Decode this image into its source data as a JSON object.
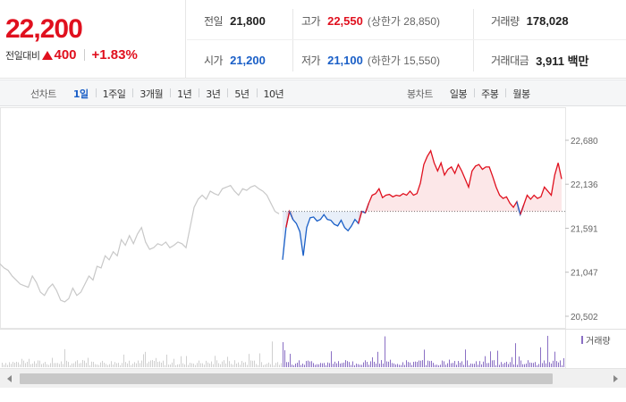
{
  "quote": {
    "current_price": "22,200",
    "change_label": "전일대비",
    "change_amount": "400",
    "change_percent": "+1.83%",
    "stats": {
      "prev_close": {
        "label": "전일",
        "value": "21,800"
      },
      "open": {
        "label": "시가",
        "value": "21,200"
      },
      "high": {
        "label": "고가",
        "value": "22,550",
        "sub": "(상한가 28,850)"
      },
      "low": {
        "label": "저가",
        "value": "21,100",
        "sub": "(하한가 15,550)"
      },
      "volume": {
        "label": "거래량",
        "value": "178,028"
      },
      "trade_value": {
        "label": "거래대금",
        "value": "3,911 백만"
      }
    }
  },
  "tabs": {
    "line_chart_label": "선차트",
    "line_items": [
      "1일",
      "1주일",
      "3개월",
      "1년",
      "3년",
      "5년",
      "10년"
    ],
    "line_active": "1일",
    "candle_chart_label": "봉차트",
    "candle_items": [
      "일봉",
      "주봉",
      "월봉"
    ]
  },
  "chart": {
    "y_ticks": [
      "22,680",
      "22,136",
      "21,591",
      "21,047",
      "20,502"
    ],
    "volume_legend": "거래량"
  },
  "colors": {
    "up": "#e0101e",
    "down": "#1a5fc7",
    "previous_session": "#c8c8c8",
    "volume": "#8a6fc4"
  },
  "chart_data": {
    "type": "line",
    "title": "",
    "xlabel": "",
    "ylabel": "",
    "ylim": [
      20502,
      22680
    ],
    "baseline": 21800,
    "y_ticks": [
      22680,
      22136,
      21591,
      21047,
      20502
    ],
    "series": [
      {
        "name": "",
        "segment": "previous_session",
        "values": [
          21150,
          21100,
          21070,
          21000,
          20950,
          20900,
          20880,
          20860,
          21000,
          20920,
          20800,
          20760,
          20850,
          20900,
          20820,
          20700,
          20680,
          20720,
          20850,
          20760,
          20800,
          20900,
          21000,
          20950,
          21120,
          21100,
          21250,
          21200,
          21300,
          21250,
          21450,
          21380,
          21500,
          21400,
          21520,
          21600,
          21420,
          21330,
          21350,
          21400,
          21380,
          21420,
          21350,
          21380,
          21420,
          21400,
          21350,
          21600,
          21850,
          21950,
          22000,
          21950,
          22050,
          22020,
          22000,
          22080,
          22100,
          22120,
          22050,
          22000,
          22080,
          22060,
          22100,
          22120,
          22080,
          22050,
          22000,
          21900,
          21800,
          21770
        ]
      },
      {
        "name": "",
        "segment": "today",
        "values": [
          21200,
          21600,
          21800,
          21700,
          21650,
          21550,
          21250,
          21600,
          21720,
          21730,
          21680,
          21700,
          21760,
          21700,
          21690,
          21640,
          21620,
          21690,
          21600,
          21560,
          21620,
          21700,
          21650,
          21800,
          21780,
          21900,
          22000,
          22020,
          22080,
          21970,
          22000,
          22010,
          21980,
          22000,
          21990,
          22020,
          22000,
          22050,
          22000,
          22020,
          22150,
          22380,
          22480,
          22550,
          22400,
          22300,
          22400,
          22250,
          22320,
          22350,
          22270,
          22380,
          22300,
          22200,
          22100,
          22300,
          22360,
          22380,
          22320,
          22350,
          22350,
          22230,
          22100,
          22000,
          21960,
          21980,
          21900,
          21850,
          21920,
          21760,
          21880,
          22000,
          21950,
          22000,
          21960,
          21980,
          22100,
          22050,
          22000,
          22250,
          22400,
          22200
        ]
      }
    ],
    "volume_legend": "거래량"
  }
}
